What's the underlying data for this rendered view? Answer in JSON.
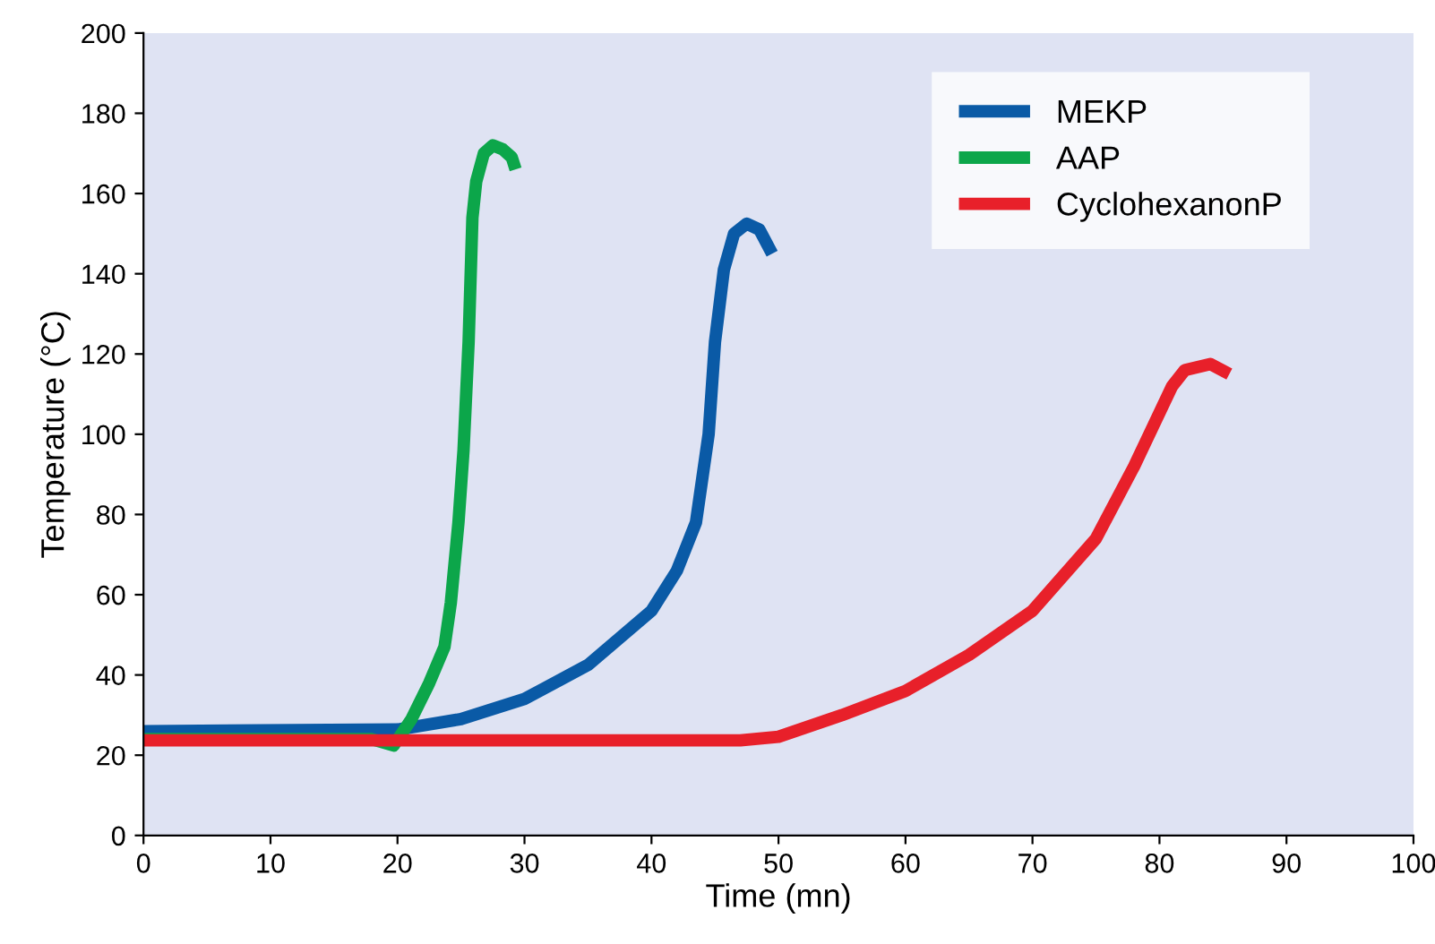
{
  "chart_data": {
    "type": "line",
    "xlabel": "Time (mn)",
    "ylabel": "Temperature (°C)",
    "xlim": [
      0,
      100
    ],
    "xticks": [
      0,
      10,
      20,
      30,
      40,
      50,
      60,
      70,
      80,
      90,
      100
    ],
    "ylim": [
      0,
      200
    ],
    "yticks": [
      0,
      20,
      40,
      60,
      80,
      100,
      120,
      140,
      160,
      180,
      200
    ],
    "grid": false,
    "legend": "top right",
    "marker": "none",
    "line_style": "solid",
    "series": [
      {
        "name": "MEKP",
        "color": "#0a5aa6",
        "x": [
          0,
          20,
          25,
          30,
          35,
          40,
          42,
          43.5,
          44.5,
          45,
          45.7,
          46.5,
          47.5,
          48.5,
          49.5
        ],
        "values": [
          26,
          26.4,
          29,
          34,
          42.5,
          56,
          66,
          78,
          100,
          123,
          141,
          150,
          152.5,
          151,
          145
        ]
      },
      {
        "name": "AAP",
        "color": "#0ca64a",
        "x": [
          0,
          18,
          19.7,
          21.1,
          22.5,
          23.7,
          24.2,
          24.8,
          25.2,
          25.6,
          25.9,
          26.2,
          26.8,
          27.5,
          28.3,
          29,
          29.3
        ],
        "values": [
          24,
          24,
          22.4,
          29,
          38,
          47,
          58,
          78,
          96,
          123,
          154,
          163,
          170,
          172,
          171,
          169,
          166
        ]
      },
      {
        "name": "CyclohexanonP",
        "color": "#e8202a",
        "x": [
          0,
          47,
          50,
          55,
          60,
          65,
          70,
          75,
          78,
          81,
          82,
          84,
          85.5
        ],
        "values": [
          23.7,
          23.7,
          24.6,
          30,
          36,
          45,
          56,
          74,
          92,
          112,
          116,
          117.5,
          115
        ]
      }
    ]
  }
}
